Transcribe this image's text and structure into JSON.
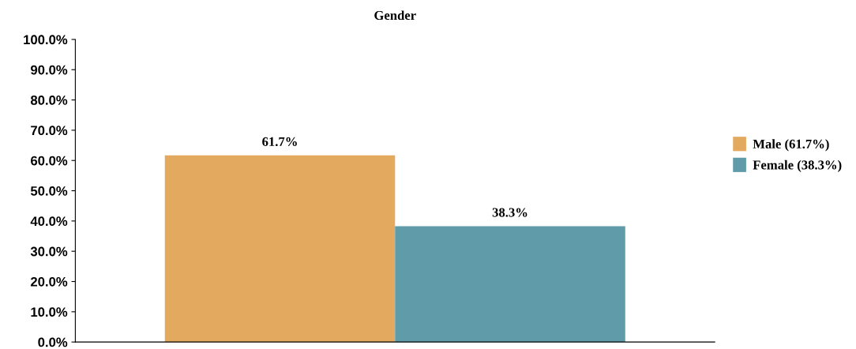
{
  "chart_data": {
    "type": "bar",
    "title": "Gender",
    "categories": [
      null
    ],
    "series": [
      {
        "name": "Male (61.7%)",
        "color": "#e3a95e",
        "values": [
          61.7
        ],
        "value_labels": [
          "61.7%"
        ]
      },
      {
        "name": "Female (38.3%)",
        "color": "#5f9ba8",
        "values": [
          38.3
        ],
        "value_labels": [
          "38.3%"
        ]
      }
    ],
    "ylim": [
      0,
      100
    ],
    "yticks": [
      {
        "value": 0,
        "label": "0.0%"
      },
      {
        "value": 10,
        "label": "10.0%"
      },
      {
        "value": 20,
        "label": "20.0%"
      },
      {
        "value": 30,
        "label": "30.0%"
      },
      {
        "value": 40,
        "label": "40.0%"
      },
      {
        "value": 50,
        "label": "50.0%"
      },
      {
        "value": 60,
        "label": "60.0%"
      },
      {
        "value": 70,
        "label": "70.0%"
      },
      {
        "value": 80,
        "label": "80.0%"
      },
      {
        "value": 90,
        "label": "90.0%"
      },
      {
        "value": 100,
        "label": "100.0%"
      }
    ],
    "grid": false,
    "legend": "right"
  }
}
